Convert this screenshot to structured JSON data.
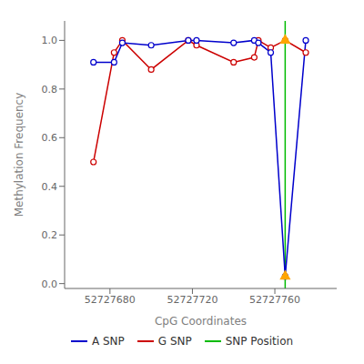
{
  "chart_data": {
    "type": "line",
    "xlabel": "CpG Coordinates",
    "ylabel": "Methylation Frequency",
    "x": [
      52727672,
      52727682,
      52727686,
      52727700,
      52727718,
      52727722,
      52727740,
      52727750,
      52727752,
      52727758,
      52727765,
      52727775
    ],
    "series": [
      {
        "name": "G SNP",
        "color": "#CC0000",
        "marker": "circle",
        "line_style": "solid",
        "values": [
          0.5,
          0.95,
          1.0,
          0.88,
          1.0,
          0.98,
          0.91,
          0.93,
          1.0,
          0.97,
          1.0,
          0.95
        ]
      },
      {
        "name": "A SNP",
        "color": "#0000CC",
        "marker": "circle",
        "line_style": "solid",
        "values": [
          0.91,
          0.91,
          0.99,
          0.98,
          1.0,
          1.0,
          0.99,
          1.0,
          0.99,
          0.95,
          0.03,
          1.0
        ]
      }
    ],
    "legend_order": [
      "A SNP",
      "G SNP",
      "SNP Position"
    ],
    "annotations": [
      {
        "type": "vline",
        "x": 52727765,
        "label": "SNP Position",
        "color": "#00BB00"
      },
      {
        "type": "marker",
        "marker": "triangle",
        "x": 52727765,
        "y": 1.0,
        "color": "#FFA500"
      },
      {
        "type": "marker",
        "marker": "triangle",
        "x": 52727765,
        "y": 0.03,
        "color": "#FFA500"
      }
    ],
    "xlim": [
      52727658,
      52727790
    ],
    "ylim": [
      -0.02,
      1.08
    ],
    "xticks": [
      52727680,
      52727720,
      52727760
    ],
    "yticks": [
      {
        "value": 0.0,
        "label": "0.0"
      },
      0.2,
      0.4,
      0.6,
      0.8,
      {
        "value": 1.0,
        "label": "1.0"
      }
    ],
    "grid": false,
    "legend": "bottom"
  }
}
